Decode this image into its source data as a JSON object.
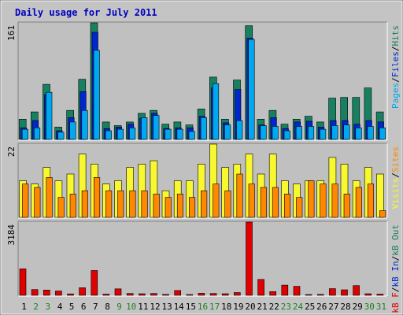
{
  "title": "Daily usage for July 2011",
  "colors": {
    "title": "#0000c0",
    "frame_bg": "#c4c4c4",
    "panel_bg": "#c0c0c0",
    "hits": "#168060",
    "files": "#0026d0",
    "pages": "#00a8f0",
    "visits": "#f8f830",
    "sites": "#ff8800",
    "kbytes": "#e00000",
    "weekend": "#208020",
    "weekday": "#000000"
  },
  "chart_data": [
    {
      "type": "bar",
      "panel": "top",
      "scale_max_label": "161",
      "side_labels": [
        {
          "text": "Pages",
          "color": "#00a8f0"
        },
        {
          "text": "/",
          "color": "#000000"
        },
        {
          "text": "Files",
          "color": "#0026d0"
        },
        {
          "text": "/",
          "color": "#000000"
        },
        {
          "text": "Hits",
          "color": "#168060"
        }
      ],
      "categories": [
        "1",
        "2",
        "3",
        "4",
        "5",
        "6",
        "7",
        "8",
        "9",
        "10",
        "11",
        "12",
        "13",
        "14",
        "15",
        "16",
        "17",
        "18",
        "19",
        "20",
        "21",
        "22",
        "23",
        "24",
        "25",
        "26",
        "27",
        "28",
        "29",
        "30",
        "31"
      ],
      "series": [
        {
          "key": "hits",
          "values": [
            28,
            38,
            76,
            17,
            40,
            83,
            161,
            24,
            19,
            24,
            36,
            40,
            21,
            24,
            20,
            42,
            86,
            28,
            82,
            157,
            28,
            40,
            21,
            28,
            32,
            24,
            57,
            58,
            58,
            71,
            38
          ]
        },
        {
          "key": "files",
          "values": [
            16,
            26,
            62,
            12,
            30,
            66,
            148,
            15,
            17,
            21,
            29,
            36,
            15,
            16,
            16,
            32,
            71,
            23,
            69,
            140,
            20,
            30,
            15,
            24,
            25,
            17,
            26,
            26,
            21,
            26,
            24
          ]
        },
        {
          "key": "pages",
          "values": [
            14,
            16,
            65,
            10,
            24,
            40,
            123,
            12,
            14,
            16,
            30,
            33,
            14,
            14,
            11,
            30,
            77,
            20,
            26,
            138,
            19,
            18,
            12,
            18,
            18,
            14,
            19,
            20,
            16,
            18,
            16
          ]
        }
      ]
    },
    {
      "type": "bar",
      "panel": "middle",
      "scale_max_label": "22",
      "side_labels": [
        {
          "text": "Visits",
          "color": "#f8f830"
        },
        {
          "text": "/",
          "color": "#000000"
        },
        {
          "text": "Sites",
          "color": "#ff8800"
        }
      ],
      "categories": [
        "1",
        "2",
        "3",
        "4",
        "5",
        "6",
        "7",
        "8",
        "9",
        "10",
        "11",
        "12",
        "13",
        "14",
        "15",
        "16",
        "17",
        "18",
        "19",
        "20",
        "21",
        "22",
        "23",
        "24",
        "25",
        "26",
        "27",
        "28",
        "29",
        "30",
        "31"
      ],
      "series": [
        {
          "key": "visits",
          "values": [
            11,
            10,
            15,
            11,
            13,
            19,
            16,
            10,
            11,
            15,
            16,
            17,
            8,
            11,
            11,
            16,
            22,
            15,
            16,
            19,
            13,
            19,
            11,
            10,
            11,
            11,
            18,
            16,
            11,
            15,
            13
          ]
        },
        {
          "key": "sites",
          "values": [
            10,
            9,
            12,
            6,
            7,
            8,
            12,
            8,
            8,
            8,
            8,
            7,
            6,
            7,
            6,
            8,
            10,
            8,
            13,
            10,
            9,
            9,
            7,
            6,
            11,
            10,
            10,
            7,
            9,
            10,
            2
          ]
        }
      ]
    },
    {
      "type": "bar",
      "panel": "bottom",
      "scale_max_label": "3184",
      "side_labels": [
        {
          "text": "kB F",
          "color": "#e00000"
        },
        {
          "text": "/",
          "color": "#000000"
        },
        {
          "text": "kB In",
          "color": "#0026d0"
        },
        {
          "text": "/",
          "color": "#000000"
        },
        {
          "text": "kB Out",
          "color": "#168060"
        }
      ],
      "categories": [
        "1",
        "2",
        "3",
        "4",
        "5",
        "6",
        "7",
        "8",
        "9",
        "10",
        "11",
        "12",
        "13",
        "14",
        "15",
        "16",
        "17",
        "18",
        "19",
        "20",
        "21",
        "22",
        "23",
        "24",
        "25",
        "26",
        "27",
        "28",
        "29",
        "30",
        "31"
      ],
      "series": [
        {
          "key": "kbytes",
          "values": [
            1150,
            250,
            230,
            190,
            60,
            330,
            1080,
            50,
            280,
            80,
            70,
            80,
            40,
            210,
            30,
            90,
            80,
            70,
            120,
            3184,
            690,
            160,
            440,
            390,
            30,
            40,
            290,
            240,
            420,
            70,
            50
          ]
        }
      ]
    }
  ],
  "x_labels": [
    {
      "text": "1",
      "weekend": false
    },
    {
      "text": "2",
      "weekend": true
    },
    {
      "text": "3",
      "weekend": true
    },
    {
      "text": "4",
      "weekend": false
    },
    {
      "text": "5",
      "weekend": false
    },
    {
      "text": "6",
      "weekend": false
    },
    {
      "text": "7",
      "weekend": false
    },
    {
      "text": "8",
      "weekend": false
    },
    {
      "text": "9",
      "weekend": true
    },
    {
      "text": "10",
      "weekend": true
    },
    {
      "text": "11",
      "weekend": false
    },
    {
      "text": "12",
      "weekend": false
    },
    {
      "text": "13",
      "weekend": false
    },
    {
      "text": "14",
      "weekend": false
    },
    {
      "text": "15",
      "weekend": false
    },
    {
      "text": "16",
      "weekend": true
    },
    {
      "text": "17",
      "weekend": true
    },
    {
      "text": "18",
      "weekend": false
    },
    {
      "text": "19",
      "weekend": false
    },
    {
      "text": "20",
      "weekend": false
    },
    {
      "text": "21",
      "weekend": false
    },
    {
      "text": "22",
      "weekend": false
    },
    {
      "text": "23",
      "weekend": true
    },
    {
      "text": "24",
      "weekend": true
    },
    {
      "text": "25",
      "weekend": false
    },
    {
      "text": "26",
      "weekend": false
    },
    {
      "text": "27",
      "weekend": false
    },
    {
      "text": "28",
      "weekend": false
    },
    {
      "text": "29",
      "weekend": false
    },
    {
      "text": "30",
      "weekend": true
    },
    {
      "text": "31",
      "weekend": true
    }
  ]
}
